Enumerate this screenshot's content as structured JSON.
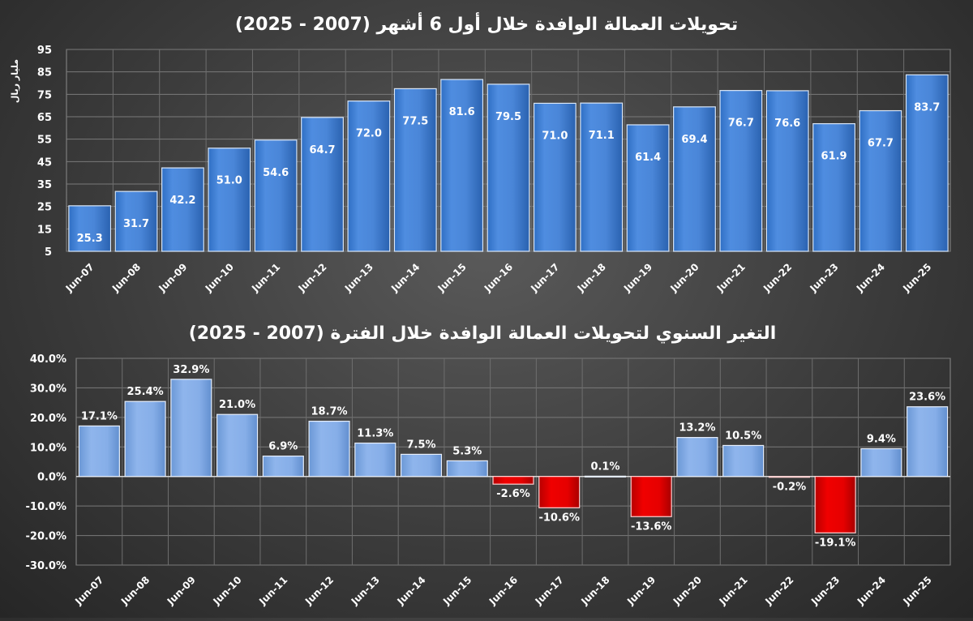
{
  "chart_data": [
    {
      "type": "bar",
      "title": "تحويلات العمالة الوافدة خلال أول 6 أشهر (2007 - 2025)",
      "ylabel": "مليار ريال",
      "categories": [
        "Jun-07",
        "Jun-08",
        "Jun-09",
        "Jun-10",
        "Jun-11",
        "Jun-12",
        "Jun-13",
        "Jun-14",
        "Jun-15",
        "Jun-16",
        "Jun-17",
        "Jun-18",
        "Jun-19",
        "Jun-20",
        "Jun-21",
        "Jun-22",
        "Jun-23",
        "Jun-24",
        "Jun-25"
      ],
      "values": [
        25.3,
        31.7,
        42.2,
        51.0,
        54.6,
        64.7,
        72.0,
        77.5,
        81.6,
        79.5,
        71.0,
        71.1,
        61.4,
        69.4,
        76.7,
        76.6,
        61.9,
        67.7,
        83.7
      ],
      "value_labels": [
        "25.3",
        "31.7",
        "42.2",
        "51.0",
        "54.6",
        "64.7",
        "72.0",
        "77.5",
        "81.6",
        "79.5",
        "71.0",
        "71.1",
        "61.4",
        "69.4",
        "76.7",
        "76.6",
        "61.9",
        "67.7",
        "83.7"
      ],
      "ylim": [
        5,
        95
      ],
      "yticks": [
        "5",
        "15",
        "25",
        "35",
        "45",
        "55",
        "65",
        "75",
        "85",
        "95"
      ],
      "grid": true,
      "bar_color": "#4a86d8"
    },
    {
      "type": "bar",
      "title": "التغير السنوي لتحويلات العمالة الوافدة خلال الفترة (2007 - 2025)",
      "categories": [
        "Jun-07",
        "Jun-08",
        "Jun-09",
        "Jun-10",
        "Jun-11",
        "Jun-12",
        "Jun-13",
        "Jun-14",
        "Jun-15",
        "Jun-16",
        "Jun-17",
        "Jun-18",
        "Jun-19",
        "Jun-20",
        "Jun-21",
        "Jun-22",
        "Jun-23",
        "Jun-24",
        "Jun-25"
      ],
      "values": [
        17.1,
        25.4,
        32.9,
        21.0,
        6.9,
        18.7,
        11.3,
        7.5,
        5.3,
        -2.6,
        -10.6,
        0.1,
        -13.6,
        13.2,
        10.5,
        -0.2,
        -19.1,
        9.4,
        23.6
      ],
      "value_labels": [
        "17.1%",
        "25.4%",
        "32.9%",
        "21.0%",
        "6.9%",
        "18.7%",
        "11.3%",
        "7.5%",
        "5.3%",
        "-2.6%",
        "-10.6%",
        "0.1%",
        "-13.6%",
        "13.2%",
        "10.5%",
        "-0.2%",
        "-19.1%",
        "9.4%",
        "23.6%"
      ],
      "ylim": [
        -30,
        40
      ],
      "yticks": [
        "40.0%",
        "30.0%",
        "20.0%",
        "10.0%",
        "0.0%",
        "-10.0%",
        "-20.0%",
        "-30.0%"
      ],
      "grid": true,
      "positive_color": "#7fa9e6",
      "negative_color": "#e00000"
    }
  ]
}
